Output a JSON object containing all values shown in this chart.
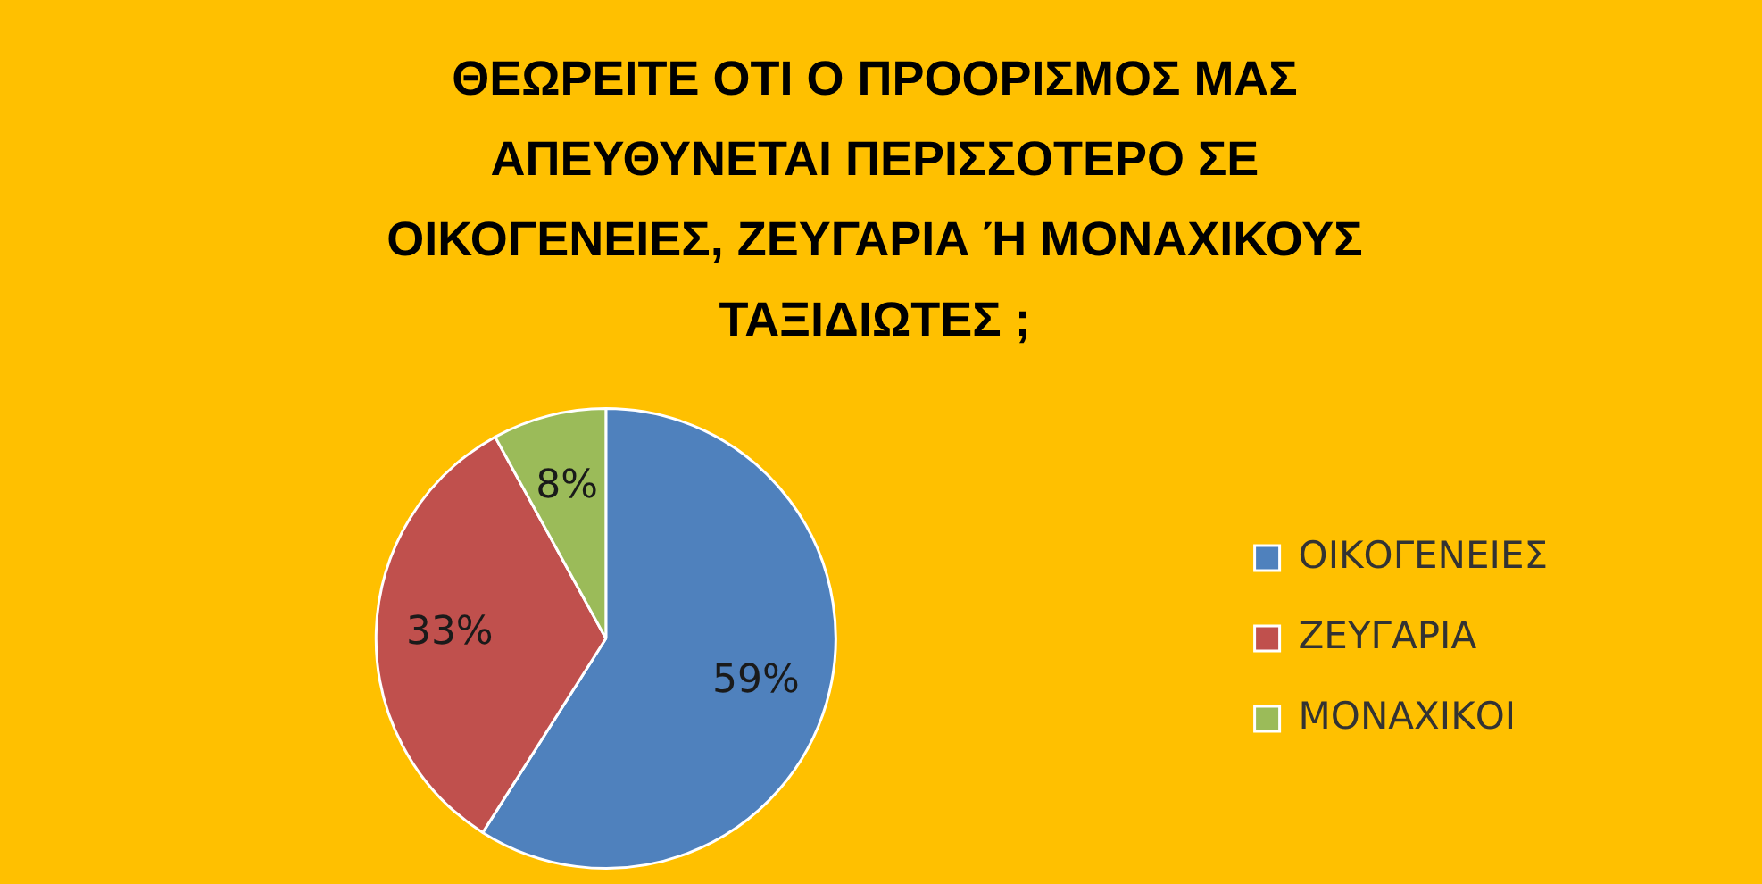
{
  "chart_data": {
    "type": "pie",
    "title": "ΘΕΩΡΕΙΤΕ ΟΤΙ Ο ΠΡΟΟΡΙΣΜΟΣ ΜΑΣ ΑΠΕΥΘΥΝΕΤΑΙ ΠΕΡΙΣΣΟΤΕΡΟ ΣΕ ΟΙΚΟΓΕΝΕΙΕΣ, ΖΕΥΓΑΡΙΑ Ή ΜΟΝΑΧΙΚΟΥΣ ΤΑΞΙΔΙΩΤΕΣ ;",
    "categories": [
      "ΟΙΚΟΓΕΝΕΙΕΣ",
      "ΖΕΥΓΑΡΙΑ",
      "ΜΟΝΑΧΙΚΟΙ"
    ],
    "values": [
      59,
      33,
      8
    ],
    "value_labels": [
      "59%",
      "33%",
      "8%"
    ],
    "colors": [
      "#4f81bd",
      "#c0504d",
      "#9bbb59"
    ],
    "legend": "right"
  }
}
